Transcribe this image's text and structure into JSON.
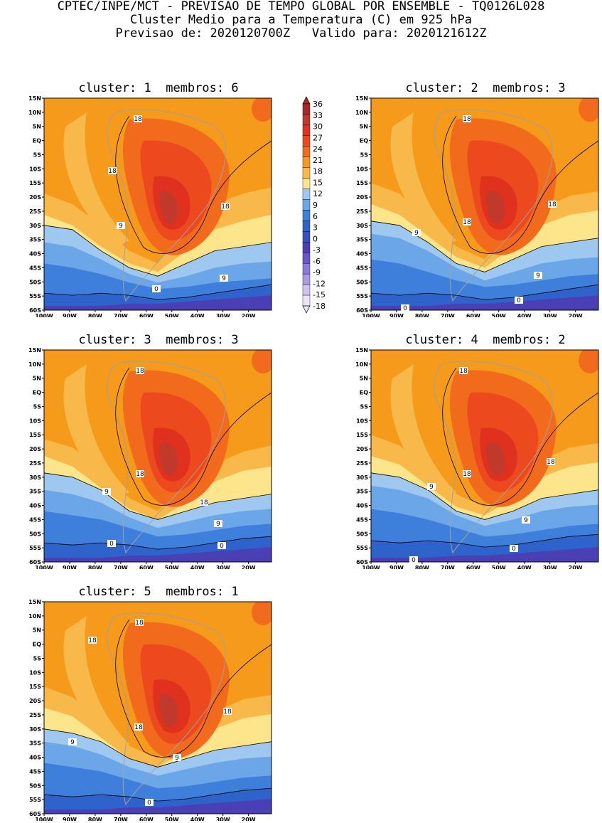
{
  "header": {
    "line1": "CPTEC/INPE/MCT - PREVISAO DE TEMPO GLOBAL POR ENSEMBLE - TQ0126L028",
    "line2": "Cluster Medio para a Temperatura (C) em 925 hPa",
    "line3": "Previsao de: 2020120700Z   Valido para: 2020121612Z"
  },
  "panels": [
    {
      "title": "cluster: 1  membros: 6",
      "contour_labels": [
        "18",
        "18",
        "18",
        "9",
        "9",
        "0"
      ]
    },
    {
      "title": "cluster: 2  membros: 3",
      "contour_labels": [
        "18",
        "18",
        "18",
        "9",
        "9",
        "0",
        "0"
      ]
    },
    {
      "title": "cluster: 3  membros: 3",
      "contour_labels": [
        "18",
        "18",
        "18",
        "9",
        "9",
        "0",
        "0"
      ]
    },
    {
      "title": "cluster: 4  membros: 2",
      "contour_labels": [
        "18",
        "18",
        "18",
        "9",
        "9",
        "0",
        "0"
      ]
    },
    {
      "title": "cluster: 5  membros: 1",
      "contour_labels": [
        "18",
        "18",
        "18",
        "18",
        "9",
        "9",
        "0"
      ]
    }
  ],
  "lat_ticks": [
    "15N",
    "10N",
    "5N",
    "EQ",
    "5S",
    "10S",
    "15S",
    "20S",
    "25S",
    "30S",
    "35S",
    "40S",
    "45S",
    "50S",
    "55S",
    "60S"
  ],
  "lon_ticks": [
    "100W",
    "90W",
    "80W",
    "70W",
    "60W",
    "50W",
    "40W",
    "30W",
    "20W"
  ],
  "colorbar": {
    "levels": [
      "36",
      "33",
      "30",
      "27",
      "24",
      "21",
      "18",
      "15",
      "12",
      "9",
      "6",
      "3",
      "0",
      "-3",
      "-6",
      "-9",
      "-12",
      "-15",
      "-18"
    ],
    "colors": [
      "#a52a2a",
      "#c0392b",
      "#e0301e",
      "#ec4a1e",
      "#f26a1b",
      "#f59a1a",
      "#f8b94a",
      "#fde58c",
      "#9fc8f0",
      "#6ba6e8",
      "#3f7fdc",
      "#2f63cc",
      "#3a4fc0",
      "#4b3fb5",
      "#6a55c8",
      "#8d7ad8",
      "#ad9ae4",
      "#cfc0ef",
      "#ede4f8"
    ]
  }
}
